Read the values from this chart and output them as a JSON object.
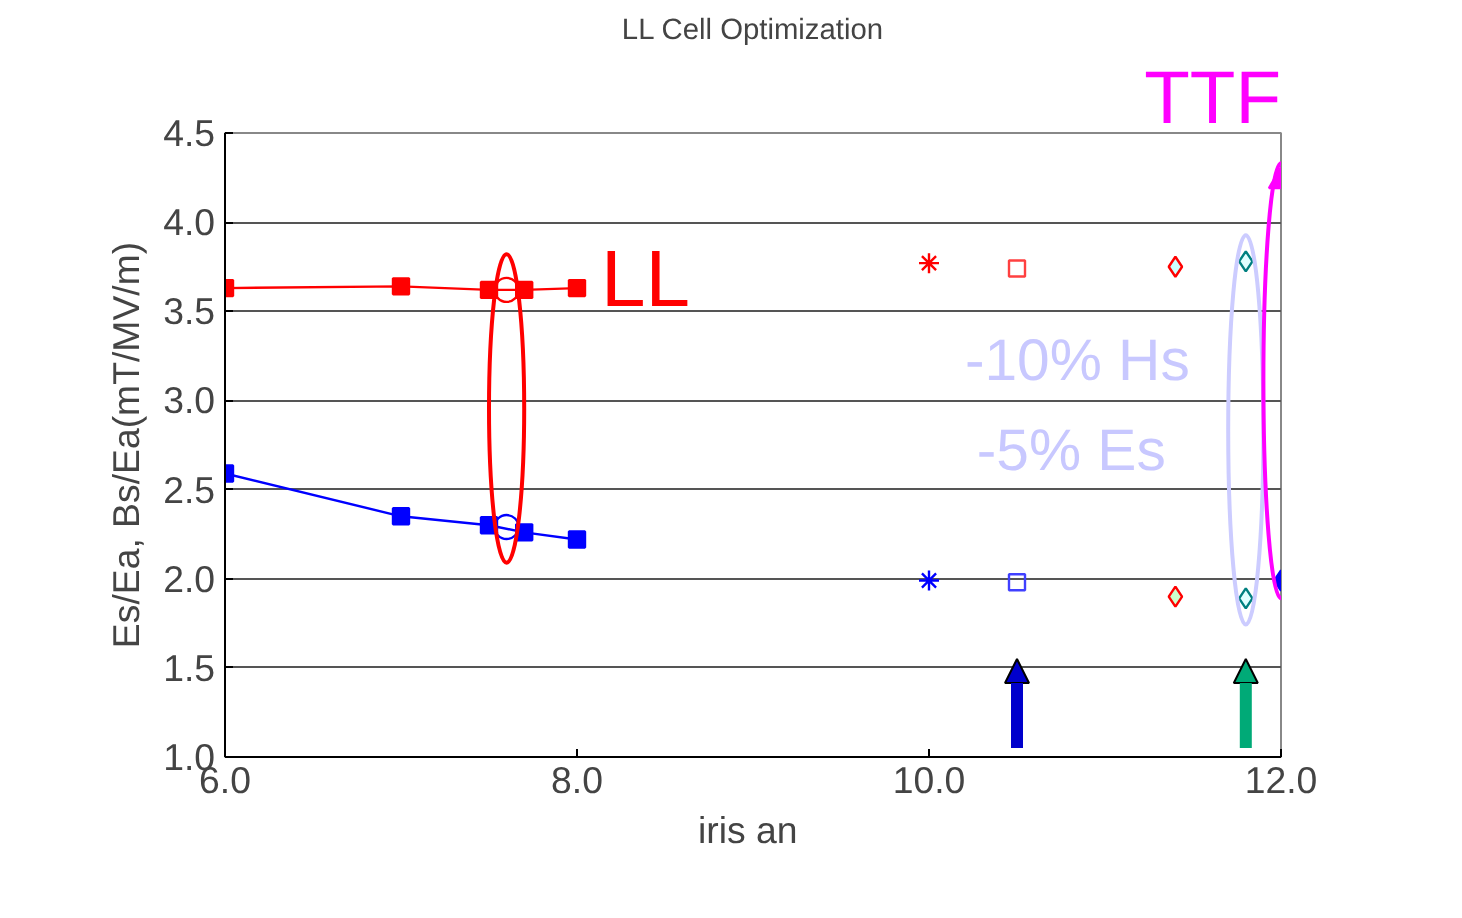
{
  "chart_data": {
    "type": "scatter",
    "title": "LL Cell Optimization",
    "xlabel": "iris  an",
    "ylabel": "Es/Ea, Bs/Ea(mT/MV/m)",
    "xlim": [
      6.0,
      12.0
    ],
    "xticks": [
      {
        "value": 6,
        "label": "6.0"
      },
      {
        "value": 8,
        "label": "8.0"
      },
      {
        "value": 10,
        "label": "10.0"
      },
      {
        "value": 12,
        "label": "12.0"
      }
    ],
    "ylim": [
      1.0,
      4.5
    ],
    "yticks": [
      {
        "value": 1,
        "label": "1.0"
      },
      1.5,
      {
        "value": 2,
        "label": "2.0"
      },
      2.5,
      {
        "value": 3,
        "label": "3.0"
      },
      3.5,
      {
        "value": 4,
        "label": "4.0"
      },
      4.5
    ],
    "grid": "y",
    "series": [
      {
        "type": "line",
        "marker": "square",
        "color": "#ff0000",
        "x": [
          6.0,
          7.0,
          7.5,
          7.7,
          8.0
        ],
        "values": [
          3.63,
          3.64,
          3.62,
          3.62,
          3.63
        ]
      },
      {
        "type": "line",
        "marker": "square",
        "color": "#0000ff",
        "x": [
          6.0,
          7.0,
          7.5,
          7.7,
          8.0
        ],
        "values": [
          2.59,
          2.35,
          2.3,
          2.26,
          2.22
        ]
      },
      {
        "marker": "circle",
        "color": "#ff0000",
        "x": [
          7.6
        ],
        "values": [
          3.62
        ]
      },
      {
        "marker": "circle",
        "color": "#0000ff",
        "x": [
          7.6
        ],
        "values": [
          2.29
        ]
      },
      {
        "marker": "cross",
        "color": "#ff0000",
        "x": [
          10.0
        ],
        "values": [
          3.77
        ]
      },
      {
        "marker": "cross",
        "color": "#0000ff",
        "x": [
          10.0
        ],
        "values": [
          1.99
        ]
      },
      {
        "marker": "square",
        "color": "#ff4040",
        "x": [
          10.5
        ],
        "values": [
          3.74
        ]
      },
      {
        "marker": "square",
        "color": "#4040ff",
        "x": [
          10.5
        ],
        "values": [
          1.98
        ]
      },
      {
        "marker": "diamond",
        "color": "#ff0000",
        "colors": [
          "#ccffff",
          "#ccffcc"
        ],
        "x": [
          11.4,
          11.4
        ],
        "values": [
          3.75,
          1.9
        ]
      },
      {
        "marker": "diamond",
        "color": "#008080",
        "colors": [
          "#e0ffff",
          "#e0ffff"
        ],
        "x": [
          11.8,
          11.8
        ],
        "values": [
          3.78,
          1.89
        ]
      },
      {
        "marker": "triangle",
        "color": "#ff00ff",
        "colors": [
          "#ff00ff"
        ],
        "x": [
          12.0
        ],
        "values": [
          4.23
        ]
      },
      {
        "marker": "diamond",
        "color": "#0000ff",
        "colors": [
          "#0000ff"
        ],
        "x": [
          12.0
        ],
        "values": [
          1.99
        ]
      }
    ],
    "annotations": [
      "LL",
      "TTF",
      "-10% Hs",
      "-5% Es"
    ]
  }
}
